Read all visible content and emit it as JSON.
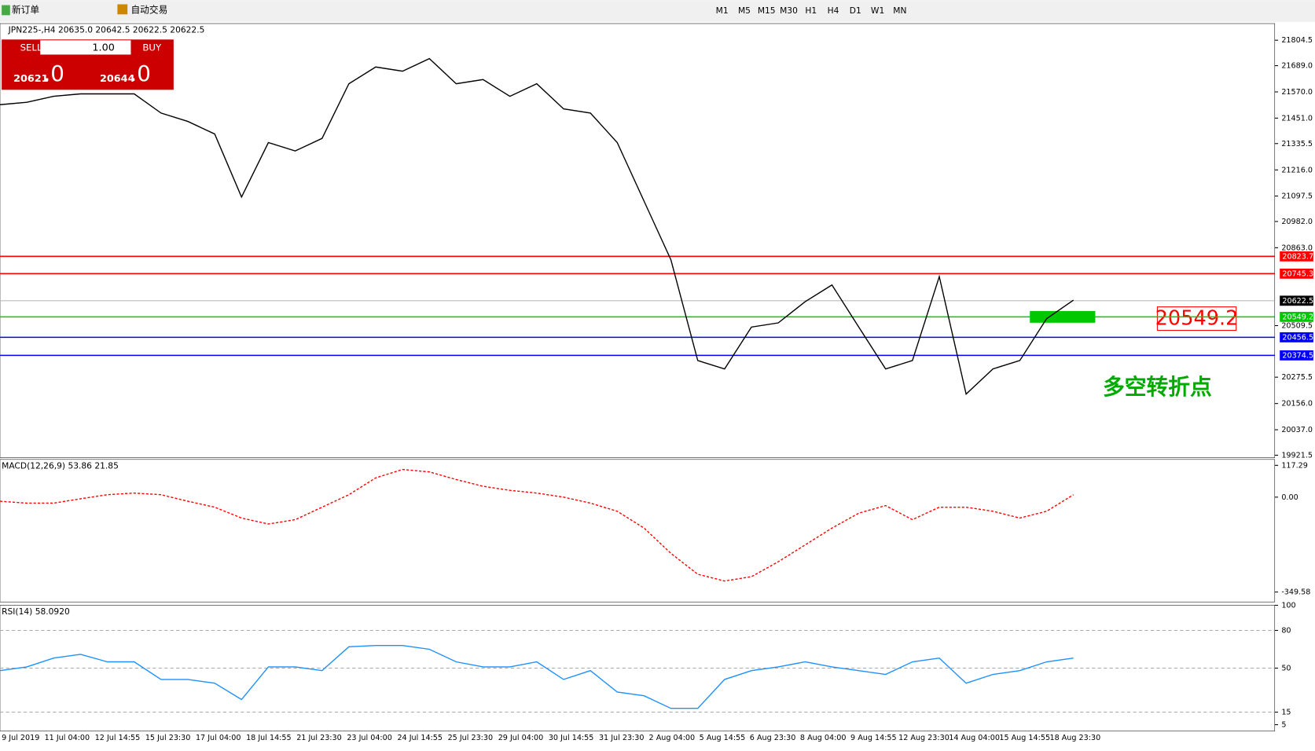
{
  "toolbar": {
    "new_order": "新订单",
    "auto_trading": "自动交易",
    "timeframes": [
      "M1",
      "M5",
      "M15",
      "M30",
      "H1",
      "H4",
      "D1",
      "W1",
      "MN"
    ]
  },
  "symbol_header": "JPN225-,H4  20635.0 20642.5 20622.5 20622.5",
  "trade_panel": {
    "sell": "SELL",
    "buy": "BUY",
    "lots": "1.00",
    "sell_price": "20621",
    "sell_frac": ".0",
    "buy_price": "20644",
    "buy_frac": ".0"
  },
  "price_chart": {
    "type": "line",
    "ylim": [
      19910,
      21880
    ],
    "yticks": [
      {
        "value": 21804.5,
        "label": "21804.5"
      },
      {
        "value": 21689.0,
        "label": "21689.0"
      },
      {
        "value": 21570.0,
        "label": "21570.0"
      },
      {
        "value": 21451.0,
        "label": "21451.0"
      },
      {
        "value": 21335.5,
        "label": "21335.5"
      },
      {
        "value": 21216.0,
        "label": "21216.0"
      },
      {
        "value": 21097.5,
        "label": "21097.5"
      },
      {
        "value": 20982.0,
        "label": "20982.0"
      },
      {
        "value": 20863.0,
        "label": "20863.0"
      },
      {
        "value": 20509.5,
        "label": "20509.5"
      },
      {
        "value": 20275.5,
        "label": "20275.5"
      },
      {
        "value": 20156.0,
        "label": "20156.0"
      },
      {
        "value": 20037.0,
        "label": "20037.0"
      },
      {
        "value": 19921.5,
        "label": "19921.5"
      }
    ],
    "close": [
      21512,
      21523,
      21550,
      21561,
      21561,
      21561,
      21474,
      21436,
      21379,
      21093,
      21340,
      21302,
      21359,
      21607,
      21683,
      21664,
      21721,
      21607,
      21626,
      21550,
      21607,
      21493,
      21474,
      21340,
      21074,
      20808,
      20351,
      20313,
      20503,
      20522,
      20618,
      20694,
      20503,
      20313,
      20351,
      20732,
      20199,
      20313,
      20351,
      20541,
      20625
    ],
    "color": "#000000",
    "current_price": {
      "value": 20622.5,
      "label": "20622.5"
    },
    "levels": [
      {
        "value": 20823.7,
        "label": "20823.7",
        "color": "#ff0000"
      },
      {
        "value": 20745.3,
        "label": "20745.3",
        "color": "#ff0000"
      },
      {
        "value": 20549.2,
        "label": "20549.2",
        "color": "#00c800"
      },
      {
        "value": 20456.5,
        "label": "20456.5",
        "color": "#0000ff"
      },
      {
        "value": 20374.5,
        "label": "20374.5",
        "color": "#0000ff"
      }
    ],
    "annotation_box": "20549.2",
    "annotation": "多空转折点"
  },
  "macd": {
    "type": "line",
    "title": "MACD(12,26,9) 53.86 21.85",
    "ylim": [
      -386,
      139
    ],
    "yticks": [
      {
        "value": 117.29,
        "label": "117.29"
      },
      {
        "value": 0,
        "label": "0.00"
      },
      {
        "value": -349.58,
        "label": "-349.58"
      }
    ],
    "signal": [
      -15,
      -22,
      -22,
      -6,
      9,
      15,
      9,
      -15,
      -37,
      -77,
      -99,
      -83,
      -37,
      9,
      71,
      102,
      93,
      65,
      40,
      25,
      15,
      0,
      -22,
      -52,
      -114,
      -207,
      -284,
      -309,
      -293,
      -238,
      -176,
      -114,
      -59,
      -31,
      -83,
      -37,
      -37,
      -52,
      -77,
      -52,
      9
    ],
    "color": "#ff0000"
  },
  "rsi": {
    "type": "line",
    "title": "RSI(14) 58.0920",
    "ylim": [
      0,
      100
    ],
    "yticks": [
      100,
      80,
      50,
      15,
      5
    ],
    "values": [
      48,
      51,
      58,
      61,
      55,
      55,
      41,
      41,
      38,
      25,
      51,
      51,
      48,
      67,
      68,
      68,
      65,
      55,
      51,
      51,
      55,
      41,
      48,
      31,
      28,
      18,
      18,
      41,
      48,
      51,
      55,
      51,
      48,
      45,
      55,
      58,
      38,
      45,
      48,
      55,
      58
    ],
    "color": "#1e90ff"
  },
  "x_labels": [
    "9 Jul 2019",
    "11 Jul 04:00",
    "12 Jul 14:55",
    "15 Jul 23:30",
    "17 Jul 04:00",
    "18 Jul 14:55",
    "21 Jul 23:30",
    "23 Jul 04:00",
    "24 Jul 14:55",
    "25 Jul 23:30",
    "29 Jul 04:00",
    "30 Jul 14:55",
    "31 Jul 23:30",
    "2 Aug 04:00",
    "5 Aug 14:55",
    "6 Aug 23:30",
    "8 Aug 04:00",
    "9 Aug 14:55",
    "12 Aug 23:30",
    "14 Aug 04:00",
    "15 Aug 14:55",
    "18 Aug 23:30"
  ]
}
